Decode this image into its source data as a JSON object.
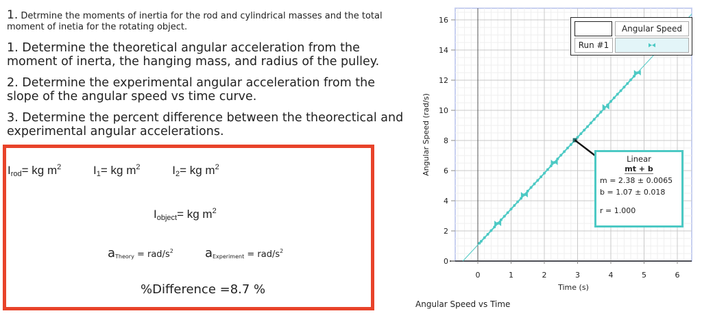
{
  "instructions": {
    "q0_num": "1.",
    "q0_text": "Detrmine the moments of inertia for the rod and cylindrical masses and the total moment of inetia for the rotating object.",
    "q1": "1. Determine the theoretical angular acceleration from the moment of inerta, the hanging mass, and radius of the pulley.",
    "q2": "2.  Determine the experimental angular acceleration from the slope of the angular speed vs time curve.",
    "q3": "3. Determine the percent difference between the theorectical and experimental angular accelerations."
  },
  "answers": {
    "i_rod": {
      "symbol": "I",
      "sub": "rod",
      "eq": "= ",
      "unit": "kg m",
      "exp": "2"
    },
    "i_1": {
      "symbol": "I",
      "sub": "1",
      "eq": "= ",
      "unit": "kg m",
      "exp": "2"
    },
    "i_2": {
      "symbol": "I",
      "sub": "2",
      "eq": "= ",
      "unit": "kg m",
      "exp": "2"
    },
    "i_object": {
      "symbol": "I",
      "sub": "object",
      "eq": "= ",
      "unit": "kg m",
      "exp": "2"
    },
    "a_theory": {
      "symbol": "a",
      "sub": "Theory",
      "eq": " = ",
      "unit": "rad/s",
      "exp": "2"
    },
    "a_experiment": {
      "symbol": "a",
      "sub": "Experiment",
      "eq": " = ",
      "unit": "rad/s",
      "exp": "2"
    },
    "percent_difference": "%Difference =8.7 %"
  },
  "colors": {
    "answer_border": "#e8432a",
    "series": "#4cc9c4",
    "legend_swatch_bg": "#e3f5f8",
    "plot_border": "#c8d0f0"
  },
  "chart": {
    "caption": "Angular Speed vs Time",
    "legend": {
      "header_blank": "",
      "header_series": "Angular Speed",
      "run_label": "Run #1",
      "marker_icon": "bowtie-marker-icon"
    },
    "fit": {
      "title": "Linear",
      "formula": "mt + b",
      "m": "m = 2.38 ± 0.0065",
      "b": "b  = 1.07 ± 0.018",
      "r": "r = 1.000"
    }
  },
  "chart_data": {
    "type": "scatter",
    "title": "Angular Speed vs Time",
    "xlabel": "Time (s)",
    "ylabel": "Angular Speed (rad/s)",
    "xlim": [
      -0.6,
      6.4
    ],
    "ylim": [
      0,
      16.8
    ],
    "xticks": [
      0,
      1,
      2,
      3,
      4,
      5,
      6
    ],
    "yticks": [
      0,
      2,
      4,
      6,
      8,
      10,
      12,
      14,
      16
    ],
    "grid": true,
    "legend_position": "top-right",
    "series": [
      {
        "name": "Angular Speed (Run #1)",
        "x": [
          0.05,
          0.1,
          0.2,
          0.3,
          0.4,
          0.5,
          0.6,
          0.7,
          0.8,
          0.9,
          1.0,
          1.1,
          1.2,
          1.3,
          1.4,
          1.5,
          1.6,
          1.7,
          1.8,
          1.9,
          2.0,
          2.1,
          2.2,
          2.3,
          2.4,
          2.5,
          2.6,
          2.7,
          2.8,
          2.9,
          3.0,
          3.1,
          3.2,
          3.3,
          3.4,
          3.5,
          3.6,
          3.7,
          3.8,
          3.9,
          4.0,
          4.1,
          4.2,
          4.3,
          4.4,
          4.5,
          4.6,
          4.7,
          4.8
        ],
        "y": [
          1.19,
          1.31,
          1.55,
          1.78,
          2.02,
          2.26,
          2.5,
          2.74,
          2.97,
          3.21,
          3.45,
          3.69,
          3.93,
          4.16,
          4.4,
          4.64,
          4.88,
          5.12,
          5.35,
          5.59,
          5.83,
          6.07,
          6.31,
          6.54,
          6.78,
          7.02,
          7.26,
          7.5,
          7.73,
          7.97,
          8.21,
          8.45,
          8.69,
          8.92,
          9.16,
          9.4,
          9.64,
          9.88,
          10.11,
          10.35,
          10.59,
          10.83,
          11.07,
          11.3,
          11.54,
          11.78,
          12.02,
          12.26,
          12.49
        ]
      }
    ],
    "fit": {
      "type": "linear",
      "equation": "mt + b",
      "m": 2.38,
      "m_err": 0.0065,
      "b": 1.07,
      "b_err": 0.018,
      "r": 1.0
    }
  }
}
